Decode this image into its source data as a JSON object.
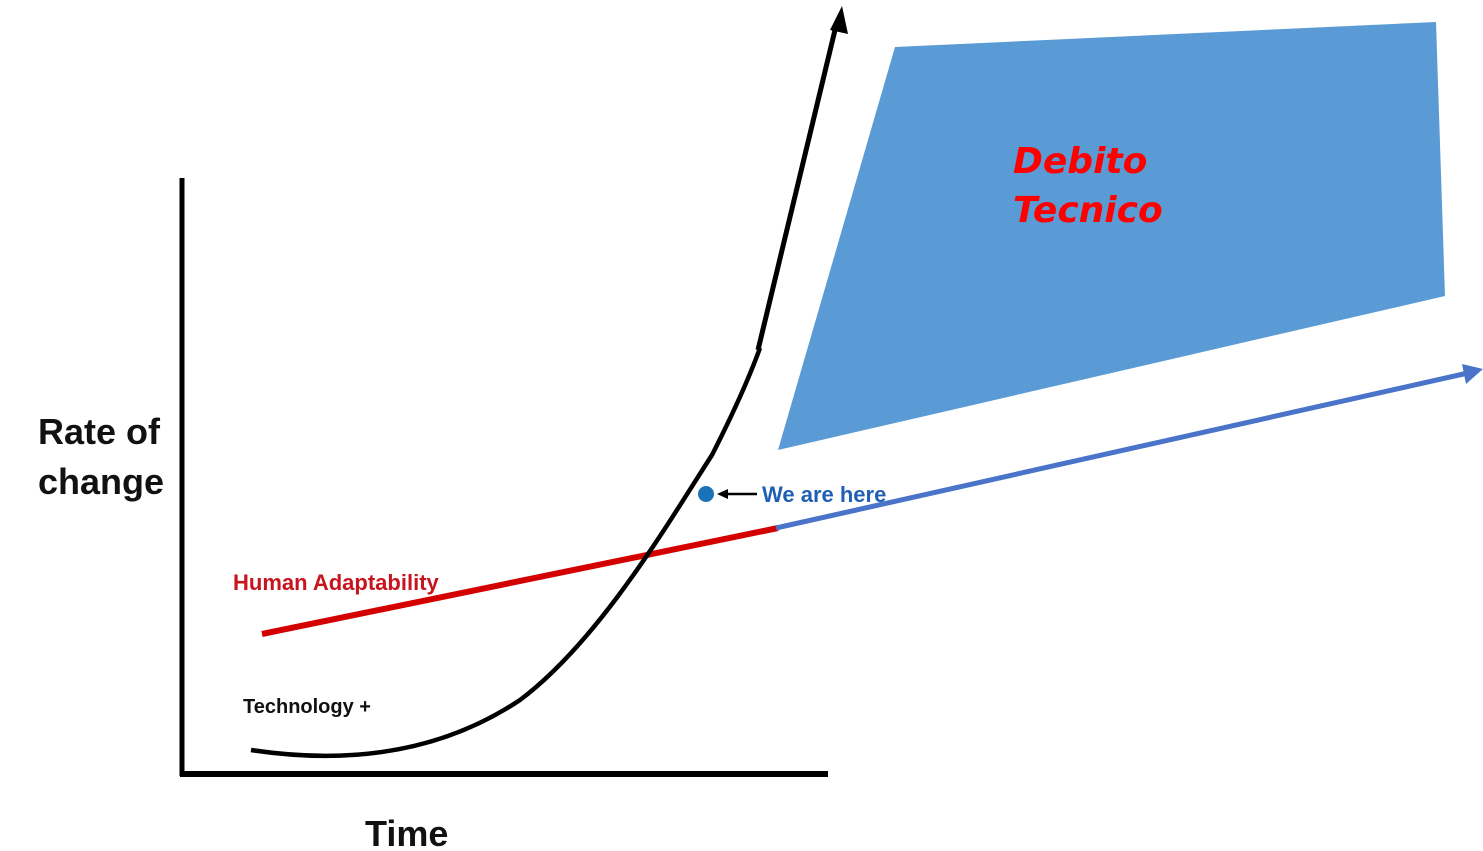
{
  "labels": {
    "y_axis_line1": "Rate of",
    "y_axis_line2": "change",
    "x_axis": "Time",
    "human_adaptability": "Human Adaptability",
    "technology": "Technology +",
    "we_are_here": "We are here"
  },
  "overlay": {
    "line1": "Debito",
    "line2": "Tecnico"
  },
  "colors": {
    "technology_curve": "#000000",
    "human_line": "#d40000",
    "extension_line": "#4a74c9",
    "marker": "#1a73b8",
    "we_are_here_text": "#1f5fb5",
    "overlay_fill": "#5b9bd5",
    "overlay_text": "#ff0000",
    "axis": "#000000"
  }
}
